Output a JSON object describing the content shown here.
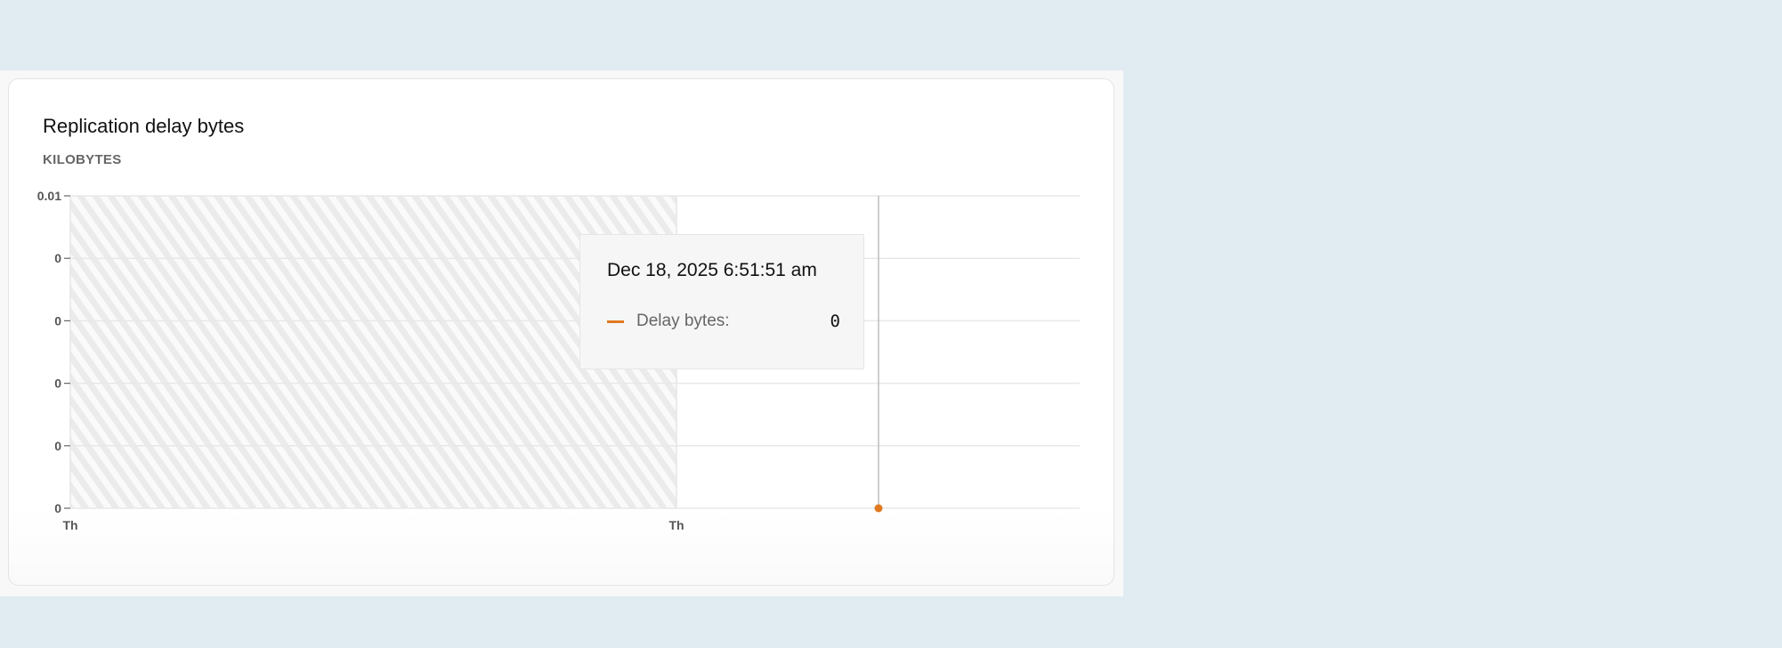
{
  "chart_data": {
    "type": "line",
    "title": "Replication delay bytes",
    "ylabel": "KILOBYTES",
    "y_tick_labels": [
      "0.01",
      "0",
      "0",
      "0",
      "0",
      "0"
    ],
    "x_tick_labels": [
      "Th",
      "Th"
    ],
    "ylim": [
      0,
      0.01
    ],
    "grid": true,
    "no_data_region": "hatched",
    "series": [
      {
        "name": "Delay bytes",
        "color": "#e07a20",
        "points": [
          {
            "x": "Dec 18, 2025 6:51:51 am",
            "y": 0
          }
        ]
      }
    ],
    "tooltip": {
      "date": "Dec 18, 2025 6:51:51 am",
      "label": "Delay bytes:",
      "value": "0"
    }
  },
  "colors": {
    "background": "#e1ebf2",
    "accent": "#e07a20"
  }
}
